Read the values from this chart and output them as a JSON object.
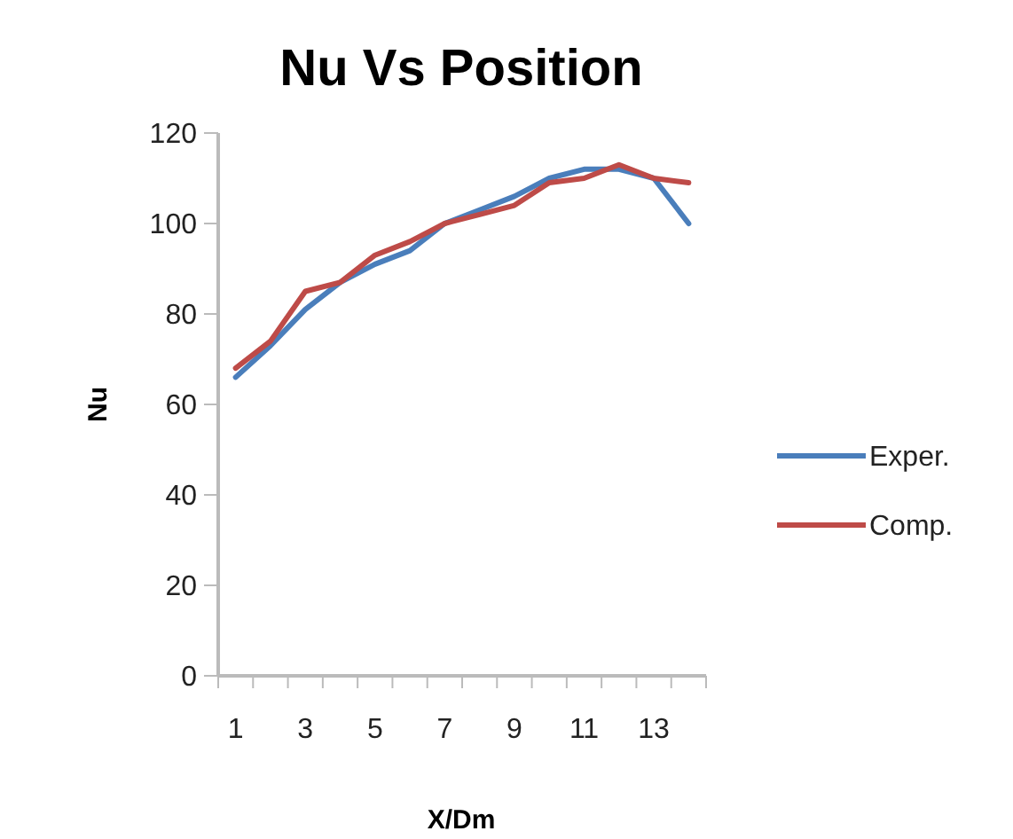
{
  "chart_data": {
    "type": "line",
    "title": "Nu Vs Position",
    "xlabel": "X/Dm",
    "ylabel": "Nu",
    "x": [
      1,
      2,
      3,
      4,
      5,
      6,
      7,
      8,
      9,
      10,
      11,
      12,
      13,
      14
    ],
    "xlim": [
      0.5,
      14.5
    ],
    "xticks": [
      1,
      3,
      5,
      7,
      9,
      11,
      13,
      {
        "value": 0.5,
        "label": null
      },
      {
        "value": 1.5,
        "label": null
      },
      {
        "value": 2.5,
        "label": null
      },
      {
        "value": 3.5,
        "label": null
      },
      {
        "value": 4.5,
        "label": null
      },
      {
        "value": 5.5,
        "label": null
      },
      {
        "value": 6.5,
        "label": null
      },
      {
        "value": 7.5,
        "label": null
      },
      {
        "value": 8.5,
        "label": null
      },
      {
        "value": 9.5,
        "label": null
      },
      {
        "value": 10.5,
        "label": null
      },
      {
        "value": 11.5,
        "label": null
      },
      {
        "value": 12.5,
        "label": null
      },
      {
        "value": 13.5,
        "label": null
      },
      {
        "value": 14.5,
        "label": null
      }
    ],
    "series": [
      {
        "name": "Exper.",
        "color": "#4a7ebb",
        "values": [
          66,
          73,
          81,
          87,
          91,
          94,
          100,
          103,
          106,
          110,
          112,
          112,
          110,
          100
        ]
      },
      {
        "name": "Comp.",
        "color": "#be4b48",
        "values": [
          68,
          74,
          85,
          87,
          93,
          96,
          100,
          102,
          104,
          109,
          110,
          113,
          110,
          109
        ]
      }
    ],
    "ylim": [
      0,
      120
    ],
    "yticks": [
      0,
      20,
      40,
      60,
      80,
      100,
      120
    ],
    "grid": false,
    "legend": "right",
    "marker": "none",
    "line_style": "solid"
  }
}
